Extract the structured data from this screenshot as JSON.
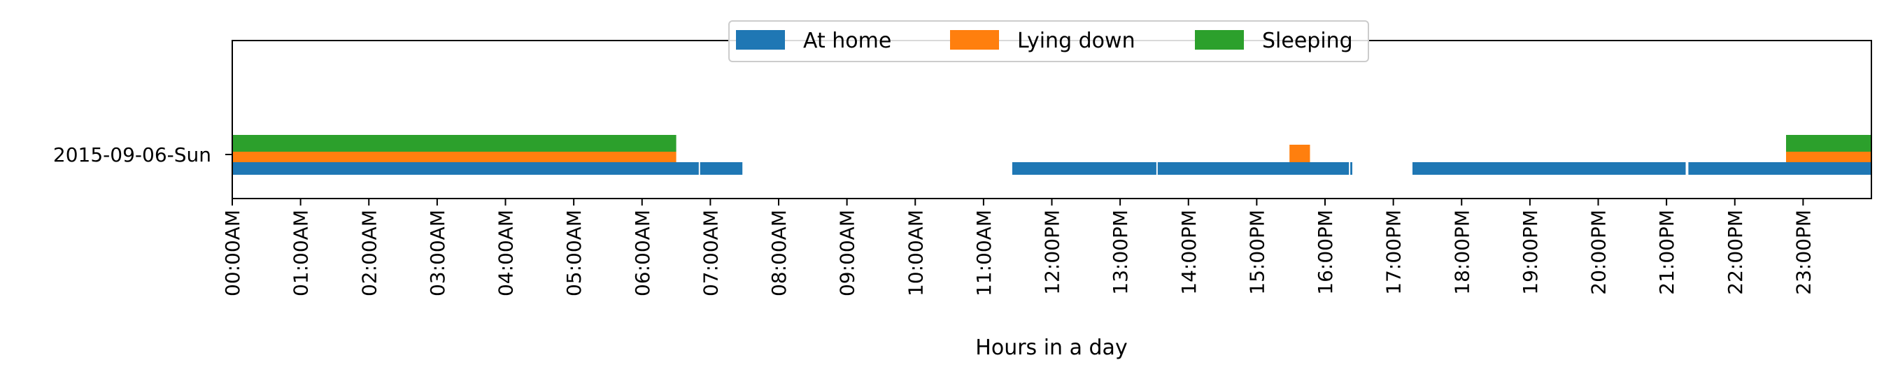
{
  "chart_data": {
    "type": "bar",
    "orientation": "horizontal",
    "title": "",
    "xlabel": "Hours in a day",
    "ylabel": "",
    "xlim": [
      0,
      24
    ],
    "grid": false,
    "legend_placement": "top-center",
    "categories": [
      "2015-09-06-Sun"
    ],
    "x_ticks": [
      "00:00AM",
      "01:00AM",
      "02:00AM",
      "03:00AM",
      "04:00AM",
      "05:00AM",
      "06:00AM",
      "07:00AM",
      "08:00AM",
      "09:00AM",
      "10:00AM",
      "11:00AM",
      "12:00PM",
      "13:00PM",
      "14:00PM",
      "15:00PM",
      "16:00PM",
      "17:00PM",
      "18:00PM",
      "19:00PM",
      "20:00PM",
      "21:00PM",
      "22:00PM",
      "23:00PM"
    ],
    "series": [
      {
        "name": "At home",
        "color": "#1f77b4",
        "intervals": [
          [
            0.0,
            6.83
          ],
          [
            6.85,
            7.47
          ],
          [
            11.42,
            13.53
          ],
          [
            13.55,
            16.35
          ],
          [
            16.37,
            16.4
          ],
          [
            17.28,
            21.28
          ],
          [
            21.32,
            24.0
          ]
        ]
      },
      {
        "name": "Lying down",
        "color": "#ff7f0e",
        "intervals": [
          [
            0.0,
            6.5
          ],
          [
            15.48,
            15.78
          ],
          [
            22.75,
            24.0
          ]
        ]
      },
      {
        "name": "Sleeping",
        "color": "#2ca02c",
        "intervals": [
          [
            0.0,
            6.5
          ],
          [
            22.75,
            24.0
          ]
        ]
      }
    ]
  }
}
